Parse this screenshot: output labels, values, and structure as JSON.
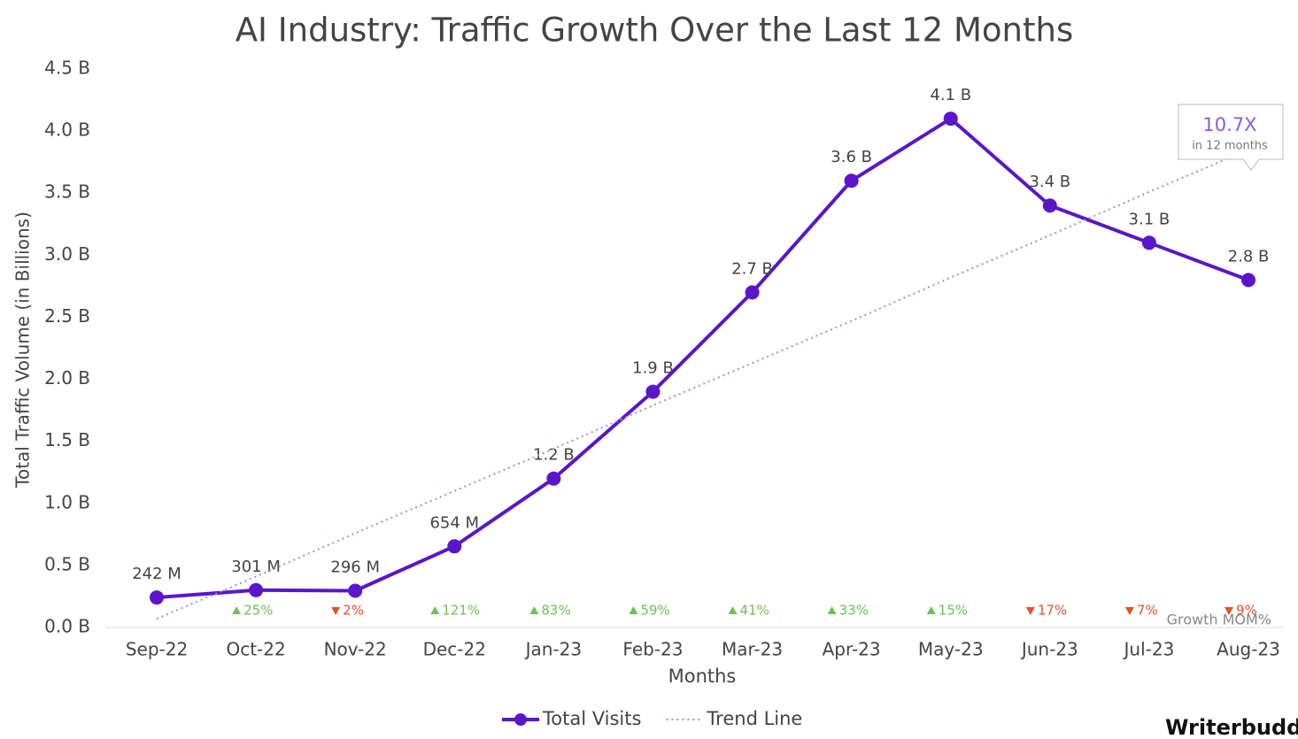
{
  "chart_data": {
    "type": "line",
    "title": "AI Industry: Traffic Growth Over the Last 12 Months",
    "x_label": "Months",
    "y_label": "Total Traffic Volume (in Billions)",
    "categories": [
      "Sep-22",
      "Oct-22",
      "Nov-22",
      "Dec-22",
      "Jan-23",
      "Feb-23",
      "Mar-23",
      "Apr-23",
      "May-23",
      "Jun-23",
      "Jul-23",
      "Aug-23"
    ],
    "series": [
      {
        "name": "Total Visits",
        "color": "#5a16c8",
        "style": "solid",
        "values": [
          0.242,
          0.301,
          0.296,
          0.654,
          1.2,
          1.9,
          2.7,
          3.6,
          4.1,
          3.4,
          3.1,
          2.8
        ],
        "value_labels": [
          "242 M",
          "301 M",
          "296 M",
          "654 M",
          "1.2 B",
          "1.9 B",
          "2.7 B",
          "3.6 B",
          "4.1 B",
          "3.4 B",
          "3.1 B",
          "2.8 B"
        ]
      },
      {
        "name": "Trend Line",
        "color": "#a78be0",
        "style": "dotted",
        "values": [
          0.07,
          0.41,
          0.76,
          1.1,
          1.44,
          1.79,
          2.13,
          2.47,
          2.82,
          3.16,
          3.51,
          3.85
        ]
      }
    ],
    "growth": {
      "label": "Growth MOM%",
      "values": [
        null,
        25,
        -2,
        121,
        83,
        59,
        41,
        33,
        15,
        -17,
        -7,
        -9
      ],
      "value_labels": [
        null,
        "25%",
        "2%",
        "121%",
        "83%",
        "59%",
        "41%",
        "33%",
        "15%",
        "17%",
        "7%",
        "9%"
      ],
      "up_color": "#6fbf5a",
      "down_color": "#e0522a"
    },
    "callout": {
      "value": "10.7X",
      "text": "in 12 months"
    },
    "watermark": "Writerbudd",
    "ylim": [
      0,
      4.5
    ],
    "yticks": [
      {
        "value": 0,
        "label": "0.0 B"
      },
      {
        "value": 0.5,
        "label": "0.5 B"
      },
      {
        "value": 1,
        "label": "1.0 B"
      },
      {
        "value": 1.5,
        "label": "1.5 B"
      },
      {
        "value": 2,
        "label": "2.0 B"
      },
      {
        "value": 2.5,
        "label": "2.5 B"
      },
      {
        "value": 3,
        "label": "3.0 B"
      },
      {
        "value": 3.5,
        "label": "3.5 B"
      },
      {
        "value": 4,
        "label": "4.0 B"
      },
      {
        "value": 4.5,
        "label": "4.5 B"
      }
    ],
    "grid": false
  }
}
